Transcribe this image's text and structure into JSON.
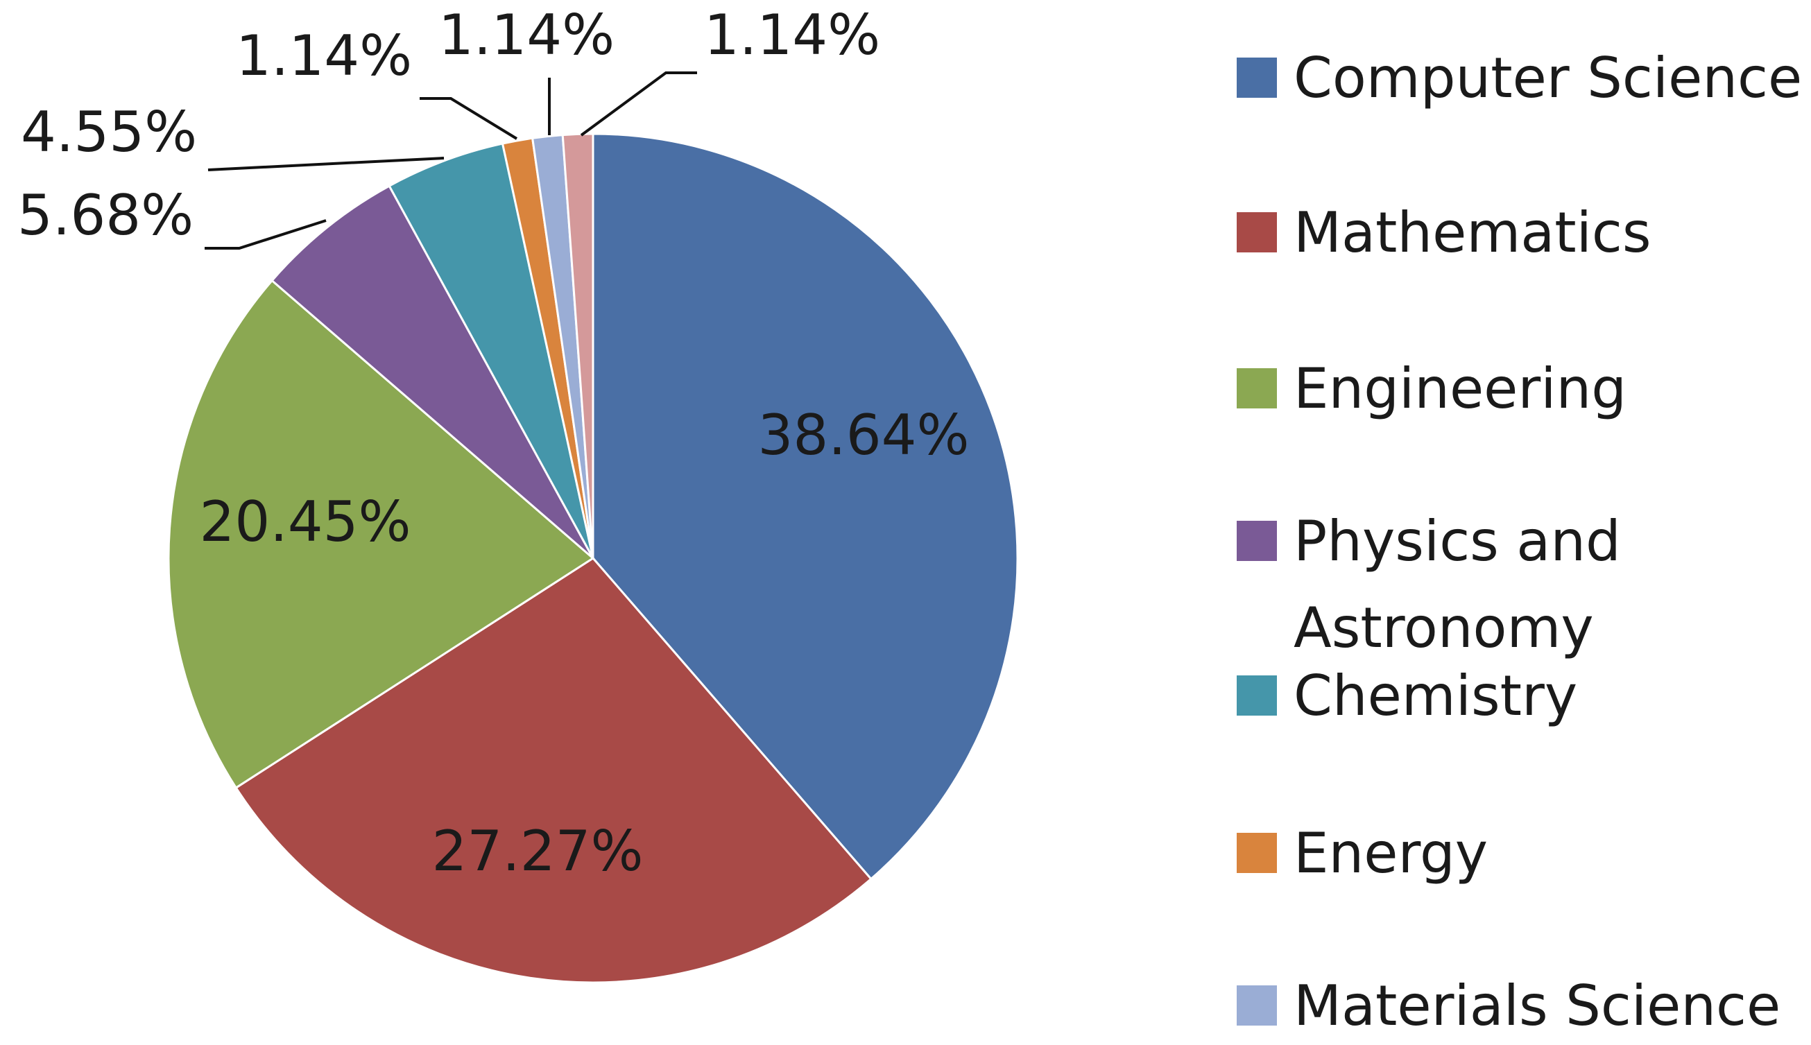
{
  "chart_data": {
    "type": "pie",
    "title": "",
    "start_angle_deg": 0,
    "direction": "clockwise",
    "legend_position": "right",
    "slices": [
      {
        "name": "Computer Science",
        "value": 38.64,
        "label": "38.64%",
        "color": "#4A6FA5"
      },
      {
        "name": "Mathematics",
        "value": 27.27,
        "label": "27.27%",
        "color": "#A84A47"
      },
      {
        "name": "Engineering",
        "value": 20.45,
        "label": "20.45%",
        "color": "#8BA852"
      },
      {
        "name": "Physics and Astronomy",
        "value": 5.68,
        "label": "5.68%",
        "color": "#7A5A96"
      },
      {
        "name": "Chemistry",
        "value": 4.55,
        "label": "4.55%",
        "color": "#4596AA"
      },
      {
        "name": "Energy",
        "value": 1.14,
        "label": "1.14%",
        "color": "#D9843D"
      },
      {
        "name": "Materials Science",
        "value": 1.14,
        "label": "1.14%",
        "color": "#9AADD5"
      },
      {
        "name": "",
        "value": 1.14,
        "label": "1.14%",
        "color": "#D4999A"
      }
    ]
  }
}
